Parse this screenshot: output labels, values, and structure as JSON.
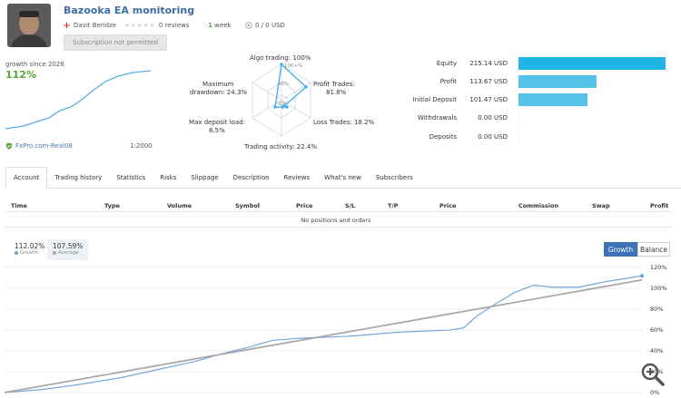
{
  "header": {
    "title": "Bazooka EA monitoring",
    "author": "Davit Beridze",
    "reviews": "0 reviews",
    "weeks_count": "1",
    "weeks_label": "week",
    "copiers": "0 / 0 USD",
    "subscribe_label": "Subscription not permitted"
  },
  "summary": {
    "growth_label": "growth since 2026",
    "growth_value": "112%",
    "broker": "FxPro.com-Real08",
    "leverage": "1:2000"
  },
  "radar": {
    "algo": "Algo trading: 100%",
    "profit_trades": "Profit Trades:",
    "profit_trades_val": "81.8%",
    "loss_trades": "Loss Trades: 18.2%",
    "activity": "Trading activity: 22.4%",
    "max_deposit": "Max deposit load:",
    "max_deposit_val": "8.5%",
    "max_drawdown": "Maximum",
    "max_drawdown2": "drawdown: 24.3%",
    "ring_100": "100+%",
    "ring_50": "50%",
    "ring_0": "0%",
    "values": {
      "algo": 100,
      "profit": 81.8,
      "loss": 18.2,
      "activity": 22.4,
      "deposit": 8.5,
      "drawdown": 24.3
    }
  },
  "balances": [
    {
      "label": "Equity",
      "value": "215.14 USD",
      "amount": 215.14
    },
    {
      "label": "Profit",
      "value": "113.67 USD",
      "amount": 113.67
    },
    {
      "label": "Initial Deposit",
      "value": "101.47 USD",
      "amount": 101.47
    },
    {
      "label": "Withdrawals",
      "value": "0.00 USD",
      "amount": 0
    },
    {
      "label": "Deposits",
      "value": "0.00 USD",
      "amount": 0
    }
  ],
  "tabs": [
    "Account",
    "Trading history",
    "Statistics",
    "Risks",
    "Slippage",
    "Description",
    "Reviews",
    "What's new",
    "Subscribers"
  ],
  "table": {
    "headers": [
      "Time",
      "Type",
      "Volume",
      "Symbol",
      "Price",
      "S/L",
      "T/P",
      "Price",
      "Commission",
      "Swap",
      "Profit"
    ],
    "empty": "No positions and orders"
  },
  "legend": {
    "growth_value": "112.02%",
    "growth_label": "Growth",
    "average_value": "107.59%",
    "average_label": "Average"
  },
  "toggles": {
    "growth": "Growth",
    "balance": "Balance"
  },
  "chart_data": {
    "type": "line",
    "y_ticks": [
      "120%",
      "100%",
      "80%",
      "60%",
      "40%",
      "20%",
      "0%"
    ],
    "ylim": [
      0,
      120
    ],
    "series": [
      {
        "name": "Growth",
        "color": "#6b9fd6",
        "points": [
          [
            0,
            0
          ],
          [
            0.06,
            3
          ],
          [
            0.12,
            8
          ],
          [
            0.18,
            14
          ],
          [
            0.24,
            22
          ],
          [
            0.3,
            30
          ],
          [
            0.34,
            37
          ],
          [
            0.38,
            43
          ],
          [
            0.42,
            50
          ],
          [
            0.46,
            52
          ],
          [
            0.5,
            53
          ],
          [
            0.54,
            54
          ],
          [
            0.58,
            56
          ],
          [
            0.62,
            58
          ],
          [
            0.66,
            59
          ],
          [
            0.7,
            60
          ],
          [
            0.72,
            62
          ],
          [
            0.74,
            73
          ],
          [
            0.77,
            85
          ],
          [
            0.8,
            96
          ],
          [
            0.83,
            103
          ],
          [
            0.86,
            101
          ],
          [
            0.9,
            101
          ],
          [
            0.94,
            106
          ],
          [
            0.97,
            109
          ],
          [
            1,
            112
          ]
        ]
      },
      {
        "name": "Average",
        "color": "#a8a8a8",
        "points": [
          [
            0,
            0
          ],
          [
            1,
            108
          ]
        ]
      }
    ]
  },
  "icons": {
    "verified": "shield-check-icon",
    "zoom": "zoom-in-icon",
    "flag": "georgia-flag-icon"
  }
}
